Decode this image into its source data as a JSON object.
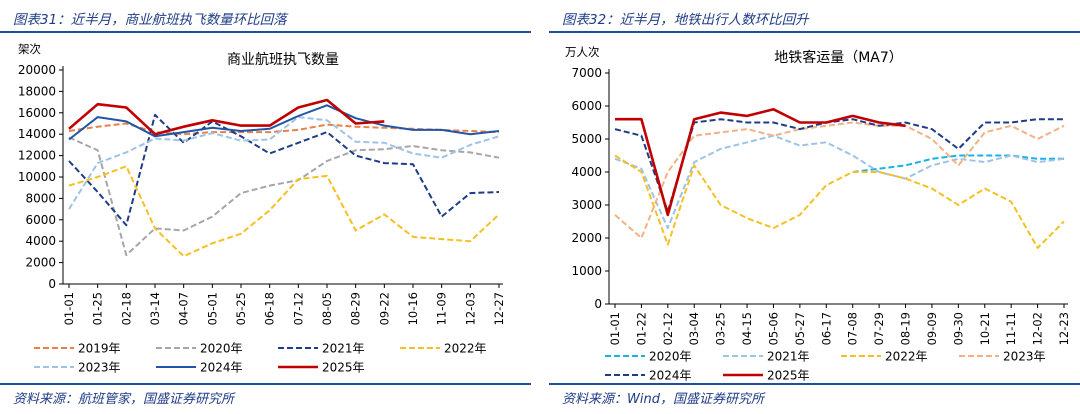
{
  "left": {
    "figure_title": "图表31：近半月，商业航班执飞数量环比回落",
    "source": "资料来源：航班管家，国盛证券研究所"
  },
  "right": {
    "figure_title": "图表32：近半月，地铁出行人数环比回升",
    "source": "资料来源：Wind，国盛证券研究所"
  },
  "chart_data": [
    {
      "type": "line",
      "title": "商业航班执飞数量",
      "ylabel": "架次",
      "xlabel": "",
      "ylim": [
        0,
        20000
      ],
      "yticks": [
        0,
        2000,
        4000,
        6000,
        8000,
        10000,
        12000,
        14000,
        16000,
        18000,
        20000
      ],
      "x": [
        "01-01",
        "01-25",
        "02-18",
        "03-14",
        "04-07",
        "05-01",
        "05-25",
        "06-18",
        "07-12",
        "08-05",
        "08-29",
        "09-22",
        "10-16",
        "11-09",
        "12-03",
        "12-27"
      ],
      "grid": false,
      "legend_position": "bottom",
      "series": [
        {
          "name": "2019年",
          "color": "#e8804a",
          "dash": "dash",
          "width": 2,
          "values": [
            14300,
            14700,
            15000,
            14200,
            14000,
            14200,
            14200,
            14200,
            14400,
            14900,
            14700,
            14600,
            14500,
            14400,
            14300,
            14200
          ]
        },
        {
          "name": "2020年",
          "color": "#a6a6a6",
          "dash": "dash",
          "width": 2,
          "values": [
            13700,
            12500,
            2700,
            5200,
            5000,
            6300,
            8500,
            9200,
            9700,
            11500,
            12500,
            12600,
            12900,
            12500,
            12300,
            11800
          ]
        },
        {
          "name": "2021年",
          "color": "#1f3c86",
          "dash": "dash",
          "width": 2,
          "values": [
            11500,
            8600,
            5500,
            15800,
            13200,
            15200,
            13800,
            12200,
            13200,
            14200,
            12000,
            11300,
            11200,
            6300,
            8500,
            8600
          ]
        },
        {
          "name": "2022年",
          "color": "#f5c022",
          "dash": "dash",
          "width": 2,
          "values": [
            9200,
            10000,
            11000,
            5200,
            2600,
            3800,
            4700,
            6900,
            9800,
            10100,
            5000,
            6500,
            4400,
            4200,
            4000,
            6500
          ]
        },
        {
          "name": "2023年",
          "color": "#9dc3e6",
          "dash": "dash",
          "width": 2,
          "values": [
            7000,
            11300,
            12300,
            13600,
            13400,
            14100,
            13400,
            13500,
            15600,
            15300,
            13300,
            13200,
            12200,
            11800,
            13000,
            13800
          ]
        },
        {
          "name": "2024年",
          "color": "#2155a7",
          "dash": "solid",
          "width": 2,
          "values": [
            13500,
            15600,
            15200,
            13800,
            14200,
            14600,
            14300,
            14500,
            15700,
            16700,
            15500,
            14800,
            14400,
            14400,
            14000,
            14300
          ]
        },
        {
          "name": "2025年",
          "color": "#c00000",
          "dash": "solid",
          "width": 2.6,
          "values": [
            14500,
            16800,
            16500,
            14000,
            14700,
            15300,
            14800,
            14800,
            16500,
            17200,
            15000,
            15200,
            null,
            null,
            null,
            null
          ]
        }
      ]
    },
    {
      "type": "line",
      "title": "地铁客运量（MA7）",
      "ylabel": "万人次",
      "xlabel": "",
      "ylim": [
        0,
        7000
      ],
      "yticks": [
        0,
        1000,
        2000,
        3000,
        4000,
        5000,
        6000,
        7000
      ],
      "x": [
        "01-01",
        "01-22",
        "02-12",
        "03-04",
        "03-25",
        "04-15",
        "05-06",
        "05-27",
        "06-17",
        "07-08",
        "07-29",
        "08-19",
        "09-09",
        "09-30",
        "10-21",
        "11-11",
        "12-02",
        "12-23"
      ],
      "grid": false,
      "legend_position": "bottom",
      "series": [
        {
          "name": "2020年",
          "color": "#17b2e6",
          "dash": "dash",
          "width": 2,
          "values": [
            null,
            null,
            null,
            null,
            null,
            null,
            null,
            null,
            null,
            4000,
            4100,
            4200,
            4400,
            4500,
            4500,
            4500,
            4400,
            4400
          ]
        },
        {
          "name": "2021年",
          "color": "#9dc3e6",
          "dash": "dash",
          "width": 2,
          "values": [
            4400,
            4100,
            2300,
            4300,
            4700,
            4900,
            5100,
            4800,
            4900,
            4500,
            4000,
            3800,
            4200,
            4400,
            4300,
            4500,
            4300,
            4400
          ]
        },
        {
          "name": "2022年",
          "color": "#f5c022",
          "dash": "dash",
          "width": 2,
          "values": [
            4500,
            4000,
            1800,
            4200,
            3000,
            2600,
            2300,
            2700,
            3600,
            4000,
            4000,
            3800,
            3500,
            3000,
            3500,
            3100,
            1700,
            2500
          ]
        },
        {
          "name": "2023年",
          "color": "#f4b183",
          "dash": "dash",
          "width": 2,
          "values": [
            2700,
            2000,
            4000,
            5100,
            5200,
            5300,
            5100,
            5300,
            5400,
            5500,
            5400,
            5400,
            5000,
            4200,
            5200,
            5400,
            5000,
            5400
          ]
        },
        {
          "name": "2024年",
          "color": "#1f3c86",
          "dash": "dash",
          "width": 2,
          "values": [
            5300,
            5100,
            2800,
            5500,
            5600,
            5500,
            5500,
            5300,
            5500,
            5600,
            5400,
            5500,
            5300,
            4700,
            5500,
            5500,
            5600,
            5600
          ]
        },
        {
          "name": "2025年",
          "color": "#c00000",
          "dash": "solid",
          "width": 2.6,
          "values": [
            5600,
            5600,
            2700,
            5600,
            5800,
            5700,
            5900,
            5500,
            5500,
            5700,
            5500,
            5400,
            null,
            null,
            null,
            null,
            null,
            null
          ]
        }
      ]
    }
  ]
}
